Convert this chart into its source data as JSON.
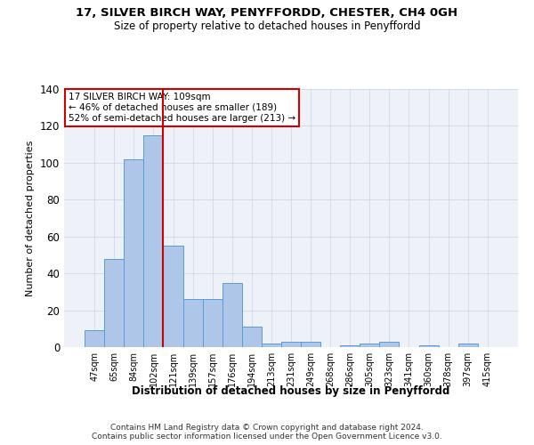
{
  "title1": "17, SILVER BIRCH WAY, PENYFFORDD, CHESTER, CH4 0GH",
  "title2": "Size of property relative to detached houses in Penyffordd",
  "xlabel": "Distribution of detached houses by size in Penyffordd",
  "ylabel": "Number of detached properties",
  "footer1": "Contains HM Land Registry data © Crown copyright and database right 2024.",
  "footer2": "Contains public sector information licensed under the Open Government Licence v3.0.",
  "categories": [
    "47sqm",
    "65sqm",
    "84sqm",
    "102sqm",
    "121sqm",
    "139sqm",
    "157sqm",
    "176sqm",
    "194sqm",
    "213sqm",
    "231sqm",
    "249sqm",
    "268sqm",
    "286sqm",
    "305sqm",
    "323sqm",
    "341sqm",
    "360sqm",
    "378sqm",
    "397sqm",
    "415sqm"
  ],
  "values": [
    9,
    48,
    102,
    115,
    55,
    26,
    26,
    35,
    11,
    2,
    3,
    3,
    0,
    1,
    2,
    3,
    0,
    1,
    0,
    2,
    0
  ],
  "bar_color": "#aec6e8",
  "bar_edge_color": "#5b9bd5",
  "highlight_bin_index": 3,
  "red_line_color": "#cc0000",
  "annotation_text": "17 SILVER BIRCH WAY: 109sqm\n← 46% of detached houses are smaller (189)\n52% of semi-detached houses are larger (213) →",
  "annotation_box_color": "#ffffff",
  "annotation_box_edge": "#cc0000",
  "ylim": [
    0,
    140
  ],
  "yticks": [
    0,
    20,
    40,
    60,
    80,
    100,
    120,
    140
  ],
  "grid_color": "#d0d8e8",
  "background_color": "#ffffff",
  "plot_bg_color": "#eef2f8"
}
